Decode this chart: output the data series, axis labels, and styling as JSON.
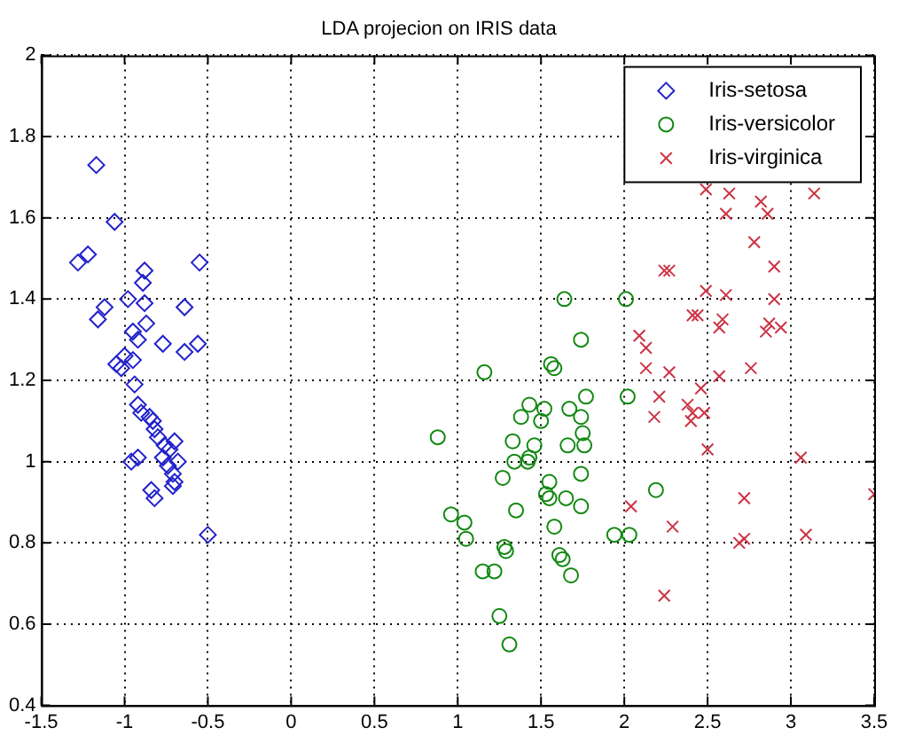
{
  "chart_data": {
    "type": "scatter",
    "title": "LDA projecion on IRIS data",
    "xlim": [
      -1.5,
      3.5
    ],
    "ylim": [
      0.4,
      2
    ],
    "xticks": [
      -1.5,
      -1,
      -0.5,
      0,
      0.5,
      1,
      1.5,
      2,
      2.5,
      3,
      3.5
    ],
    "yticks": [
      0.4,
      0.6,
      0.8,
      1,
      1.2,
      1.4,
      1.6,
      1.8,
      2
    ],
    "grid": true,
    "legend": "top right",
    "series": [
      {
        "name": "Iris-setosa",
        "color": "#2222cc",
        "marker": "diamond",
        "x": [
          -1.17,
          -1.06,
          -1.28,
          -1.22,
          -1.12,
          -1.16,
          -0.55,
          -0.88,
          -0.89,
          -0.88,
          -0.98,
          -0.64,
          -0.56,
          -0.87,
          -0.95,
          -0.77,
          -0.92,
          -0.64,
          -0.95,
          -1.0,
          -1.05,
          -1.02,
          -0.94,
          -0.92,
          -0.9,
          -0.85,
          -0.83,
          -0.82,
          -0.8,
          -0.76,
          -0.7,
          -0.73,
          -0.77,
          -0.74,
          -0.68,
          -0.71,
          -0.7,
          -0.92,
          -0.84,
          -0.82,
          -0.71,
          -0.5,
          -0.96
        ],
        "values": [
          1.73,
          1.59,
          1.49,
          1.51,
          1.38,
          1.35,
          1.49,
          1.47,
          1.44,
          1.39,
          1.4,
          1.38,
          1.29,
          1.34,
          1.32,
          1.29,
          1.3,
          1.27,
          1.25,
          1.26,
          1.24,
          1.23,
          1.19,
          1.14,
          1.12,
          1.11,
          1.1,
          1.08,
          1.06,
          1.04,
          1.05,
          1.03,
          1.01,
          0.99,
          1.0,
          0.97,
          0.95,
          1.01,
          0.93,
          0.91,
          0.94,
          0.82,
          1.0
        ]
      },
      {
        "name": "Iris-versicolor",
        "color": "#118811",
        "marker": "circle",
        "x": [
          1.64,
          2.01,
          1.74,
          1.56,
          1.58,
          1.16,
          2.02,
          1.77,
          1.43,
          1.52,
          1.67,
          1.38,
          1.5,
          1.74,
          0.88,
          1.75,
          1.33,
          1.46,
          1.66,
          1.76,
          1.43,
          1.42,
          1.34,
          1.74,
          1.27,
          1.55,
          2.19,
          1.53,
          1.65,
          1.55,
          1.74,
          1.35,
          0.96,
          1.04,
          1.58,
          1.05,
          1.94,
          2.03,
          1.28,
          1.29,
          1.61,
          1.63,
          1.15,
          1.22,
          1.68,
          1.25,
          1.31
        ],
        "values": [
          1.4,
          1.4,
          1.3,
          1.24,
          1.23,
          1.22,
          1.16,
          1.16,
          1.14,
          1.13,
          1.13,
          1.11,
          1.1,
          1.11,
          1.06,
          1.07,
          1.05,
          1.04,
          1.04,
          1.04,
          1.01,
          1.0,
          1.0,
          0.97,
          0.96,
          0.95,
          0.93,
          0.92,
          0.91,
          0.91,
          0.89,
          0.88,
          0.87,
          0.85,
          0.84,
          0.81,
          0.82,
          0.82,
          0.79,
          0.78,
          0.77,
          0.76,
          0.73,
          0.73,
          0.72,
          0.62,
          0.55
        ]
      },
      {
        "name": "Iris-virginica",
        "color": "#cc3344",
        "marker": "cross",
        "x": [
          2.49,
          2.63,
          2.82,
          3.14,
          2.61,
          2.86,
          2.78,
          2.27,
          2.9,
          2.49,
          2.61,
          2.9,
          2.41,
          2.44,
          2.59,
          2.57,
          2.87,
          2.85,
          2.94,
          2.09,
          2.13,
          2.13,
          2.27,
          2.57,
          2.76,
          2.46,
          2.21,
          2.38,
          2.18,
          2.41,
          2.48,
          2.4,
          2.5,
          3.06,
          2.72,
          3.5,
          2.04,
          2.29,
          2.69,
          2.72,
          3.09,
          2.24,
          2.24
        ],
        "values": [
          1.67,
          1.66,
          1.64,
          1.66,
          1.61,
          1.61,
          1.54,
          1.47,
          1.48,
          1.42,
          1.41,
          1.4,
          1.36,
          1.36,
          1.35,
          1.33,
          1.34,
          1.32,
          1.33,
          1.31,
          1.28,
          1.23,
          1.22,
          1.21,
          1.23,
          1.18,
          1.16,
          1.14,
          1.11,
          1.12,
          1.12,
          1.1,
          1.03,
          1.01,
          0.91,
          0.92,
          0.89,
          0.84,
          0.8,
          0.81,
          0.82,
          0.67,
          1.47
        ]
      }
    ]
  }
}
